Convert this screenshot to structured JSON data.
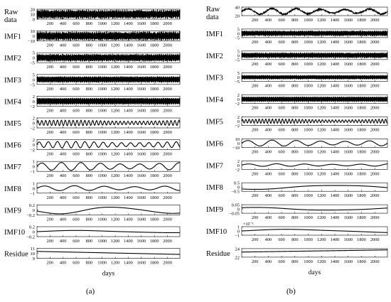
{
  "figure": {
    "panel_captions": [
      "(a)",
      "(b)"
    ],
    "xlabel": "days"
  },
  "chart_data": [
    {
      "type": "line",
      "panel": "(a)",
      "xlabel": "days",
      "xlim": [
        1,
        2190
      ],
      "xticks": [
        200,
        400,
        600,
        800,
        1000,
        1200,
        1400,
        1600,
        1800,
        2000
      ],
      "rows": [
        {
          "label": "Raw data",
          "yticks": [
            "20",
            "10",
            "0"
          ],
          "yrange": [
            0,
            20
          ],
          "offset": 10,
          "amp": 8,
          "period": 3,
          "noise": 1.0
        },
        {
          "label": "IMF1",
          "yticks": [
            "10",
            "0",
            "−10"
          ],
          "yrange": [
            -10,
            10
          ],
          "offset": 0,
          "amp": 8,
          "period": 2.2,
          "noise": 1.0
        },
        {
          "label": "IMF2",
          "yticks": [
            "5",
            "0",
            "−5"
          ],
          "yrange": [
            -5,
            5
          ],
          "offset": 0,
          "amp": 3.5,
          "period": 5,
          "noise": 0.8
        },
        {
          "label": "IMF3",
          "yticks": [
            "5",
            "0",
            "−5"
          ],
          "yrange": [
            -5,
            5
          ],
          "offset": 0,
          "amp": 3.0,
          "period": 11,
          "noise": 0.5
        },
        {
          "label": "IMF4",
          "yticks": [
            "2",
            "0",
            "−2"
          ],
          "yrange": [
            -2,
            2
          ],
          "offset": 0,
          "amp": 1.3,
          "period": 22,
          "noise": 0.4
        },
        {
          "label": "IMF5",
          "yticks": [
            "2",
            "0",
            "−2"
          ],
          "yrange": [
            -2,
            2
          ],
          "offset": 0,
          "amp": 1.1,
          "period": 60,
          "noise": 0.2
        },
        {
          "label": "IMF6",
          "yticks": [
            "2",
            "0",
            "−2"
          ],
          "yrange": [
            -2,
            2
          ],
          "offset": 0,
          "amp": 1.3,
          "period": 140,
          "noise": 0.1
        },
        {
          "label": "IMF7",
          "yticks": [
            "1",
            "0",
            "−1"
          ],
          "yrange": [
            -1,
            1
          ],
          "offset": 0,
          "amp": 0.8,
          "period": 300,
          "noise": 0.05
        },
        {
          "label": "IMF8",
          "yticks": [
            "1",
            "0",
            "−1"
          ],
          "yrange": [
            -1,
            1
          ],
          "offset": 0,
          "amp": 0.5,
          "period": 460,
          "noise": 0.0
        },
        {
          "label": "IMF9",
          "yticks": [
            "0.2",
            "0",
            "−0.2"
          ],
          "yrange": [
            -0.2,
            0.2
          ],
          "offset": 0,
          "amp": 0.16,
          "period": 1700,
          "noise": 0.0,
          "phase": 3.5
        },
        {
          "label": "IMF10",
          "yticks": [
            "0.2",
            "0",
            "−0.2"
          ],
          "yrange": [
            -0.2,
            0.2
          ],
          "offset": 0,
          "amp": 0.05,
          "period": 2600,
          "noise": 0.0
        },
        {
          "label": "Residue",
          "yticks": [
            "11",
            "10",
            "9"
          ],
          "yrange": [
            9,
            11
          ],
          "offset": 10.4,
          "amp": 0.0,
          "period": 1000,
          "trend": -0.6,
          "noise": 0.0
        }
      ]
    },
    {
      "type": "line",
      "panel": "(b)",
      "xlabel": "days",
      "xlim": [
        1,
        2190
      ],
      "xticks": [
        200,
        400,
        600,
        800,
        1000,
        1200,
        1400,
        1600,
        1800,
        2000
      ],
      "rows": [
        {
          "label": "Raw data",
          "yticks": [
            "40",
            "20"
          ],
          "yrange": [
            20,
            40
          ],
          "offset": 30,
          "amp": 7,
          "period": 365,
          "noise": 1.2
        },
        {
          "label": "IMF1",
          "yticks": [
            "5",
            "0",
            "−5"
          ],
          "yrange": [
            -5,
            5
          ],
          "offset": 0,
          "amp": 3.0,
          "period": 2.2,
          "noise": 0.8
        },
        {
          "label": "IMF2",
          "yticks": [
            "5",
            "0",
            "−5"
          ],
          "yrange": [
            -5,
            5
          ],
          "offset": 0,
          "amp": 3.0,
          "period": 5,
          "noise": 0.7
        },
        {
          "label": "IMF3",
          "yticks": [
            "5",
            "0",
            "−5"
          ],
          "yrange": [
            -5,
            5
          ],
          "offset": 0,
          "amp": 2.4,
          "period": 11,
          "noise": 0.5
        },
        {
          "label": "IMF4",
          "yticks": [
            "2",
            "0",
            "−2"
          ],
          "yrange": [
            -2,
            2
          ],
          "offset": 0,
          "amp": 1.2,
          "period": 22,
          "noise": 0.3
        },
        {
          "label": "IMF5",
          "yticks": [
            "2",
            "0",
            "−2"
          ],
          "yrange": [
            -2,
            2
          ],
          "offset": 0,
          "amp": 1.0,
          "period": 50,
          "noise": 0.2
        },
        {
          "label": "IMF6",
          "yticks": [
            "10",
            "0",
            "−10"
          ],
          "yrange": [
            -10,
            10
          ],
          "offset": 0,
          "amp": 7,
          "period": 365,
          "noise": 0.0
        },
        {
          "label": "IMF7",
          "yticks": [
            "2",
            "0",
            "−2"
          ],
          "yrange": [
            -2,
            2
          ],
          "offset": 0,
          "amp": 0.6,
          "period": 420,
          "noise": 0.0
        },
        {
          "label": "IMF8",
          "yticks": [
            "0.5",
            "0",
            "−0.5"
          ],
          "yrange": [
            -0.5,
            0.5
          ],
          "offset": 0,
          "amp": 0.3,
          "period": 2600,
          "noise": 0.0,
          "phase": 4.4
        },
        {
          "label": "IMF9",
          "yticks": [
            "0.05",
            "0",
            "−0.05"
          ],
          "yrange": [
            -0.05,
            0.05
          ],
          "offset": 0,
          "amp": 0.02,
          "period": 2400,
          "noise": 0.0,
          "phase": 1.2
        },
        {
          "label": "IMF10",
          "yticks": [
            "1",
            "0",
            "−1"
          ],
          "yrange": [
            -1,
            1
          ],
          "offset": 0,
          "amp": 0.4,
          "period": 3000,
          "noise": 0.0,
          "scale_note": "×10⁻³"
        },
        {
          "label": "Residue",
          "yticks": [
            "24",
            "22"
          ],
          "yrange": [
            22,
            24
          ],
          "offset": 23.2,
          "amp": 0.0,
          "period": 1000,
          "trend": 0.5,
          "noise": 0.0
        }
      ]
    }
  ]
}
